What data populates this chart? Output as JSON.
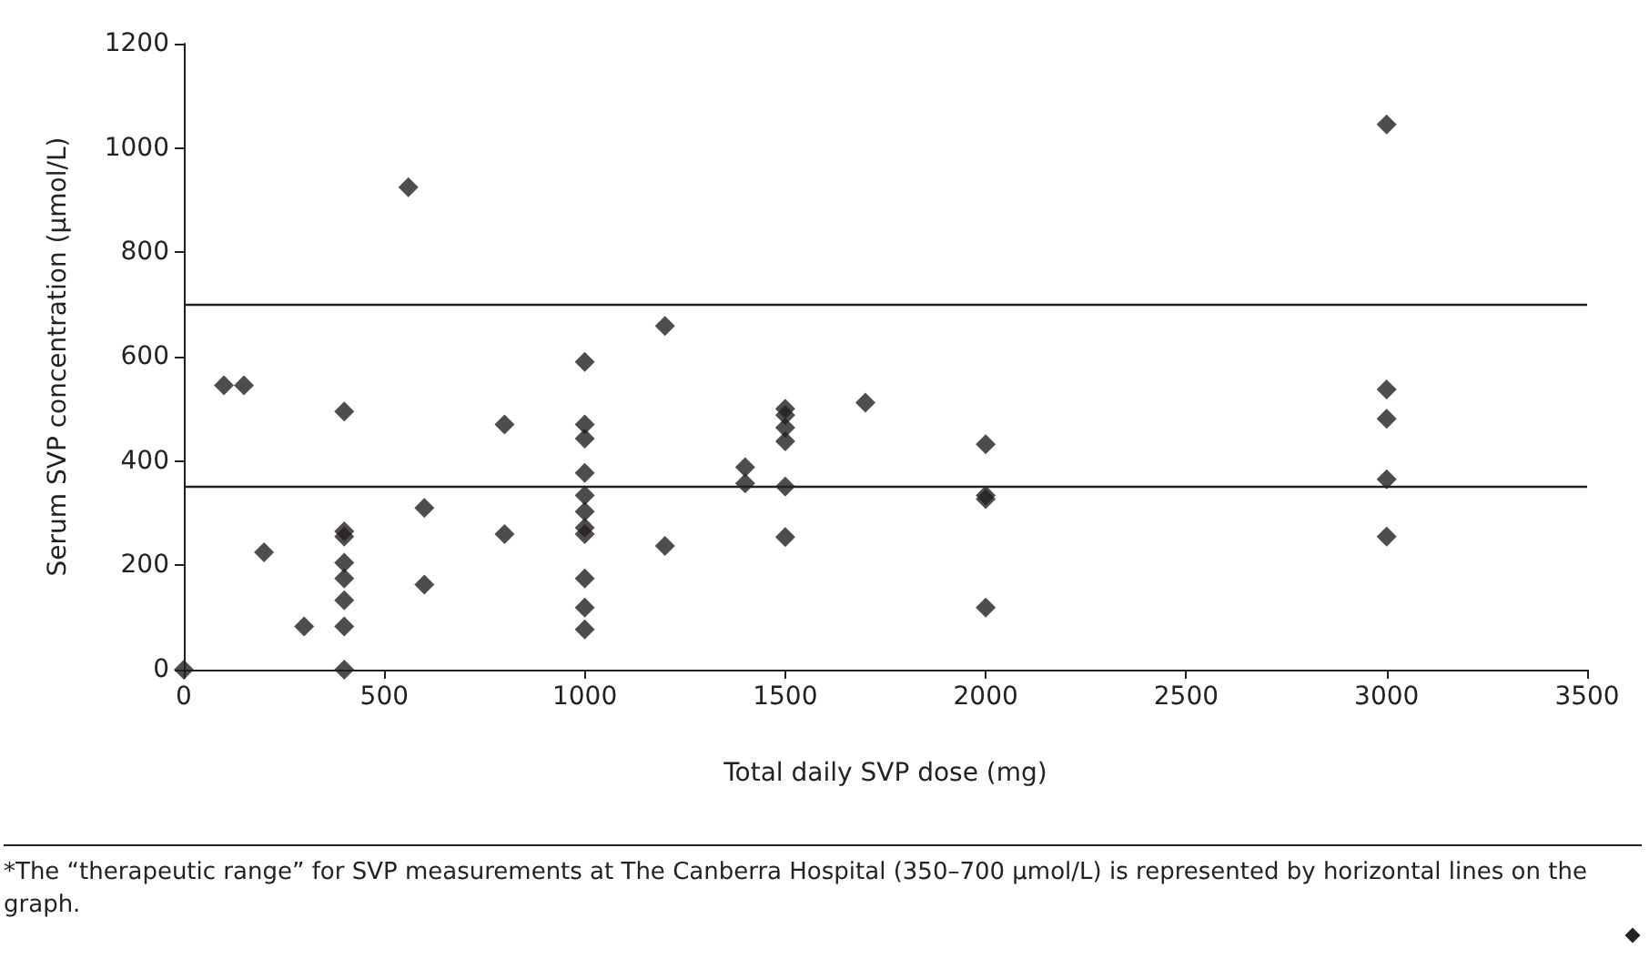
{
  "chart_data": {
    "type": "scatter",
    "xlabel": "Total daily SVP dose (mg)",
    "ylabel": "Serum SVP concentration (μmol/L)",
    "x": [
      0,
      100,
      150,
      200,
      300,
      400,
      400,
      400,
      400,
      400,
      400,
      400,
      400,
      560,
      600,
      600,
      800,
      800,
      1000,
      1000,
      1000,
      1000,
      1000,
      1000,
      1000,
      1000,
      1000,
      1000,
      1000,
      1200,
      1200,
      1400,
      1400,
      1500,
      1500,
      1500,
      1500,
      1500,
      1500,
      1700,
      2000,
      2000,
      2000,
      2000,
      3000,
      3000,
      3000,
      3000,
      3000
    ],
    "values": [
      0,
      545,
      545,
      225,
      83,
      495,
      265,
      255,
      205,
      175,
      133,
      83,
      0,
      925,
      310,
      163,
      470,
      260,
      590,
      470,
      443,
      377,
      334,
      303,
      272,
      260,
      175,
      119,
      77,
      659,
      237,
      388,
      357,
      500,
      488,
      464,
      438,
      351,
      254,
      512,
      432,
      334,
      327,
      119,
      1045,
      537,
      481,
      365,
      255
    ],
    "color": "#231f20",
    "marker": "diamond",
    "grid": false,
    "xlim": [
      0,
      3500
    ],
    "xticks": [
      0,
      500,
      1000,
      1500,
      2000,
      2500,
      3000,
      3500
    ],
    "ylim": [
      0,
      1200
    ],
    "yticks": [
      0,
      200,
      400,
      600,
      800,
      1000,
      1200
    ],
    "ref_lines": [
      {
        "axis": "y",
        "value": 350
      },
      {
        "axis": "y",
        "value": 700
      }
    ],
    "annotations": [
      "*The “therapeutic range” for SVP measurements at The Canberra Hospital (350–700 μmol/L) is represented by horizontal lines on the graph."
    ]
  }
}
